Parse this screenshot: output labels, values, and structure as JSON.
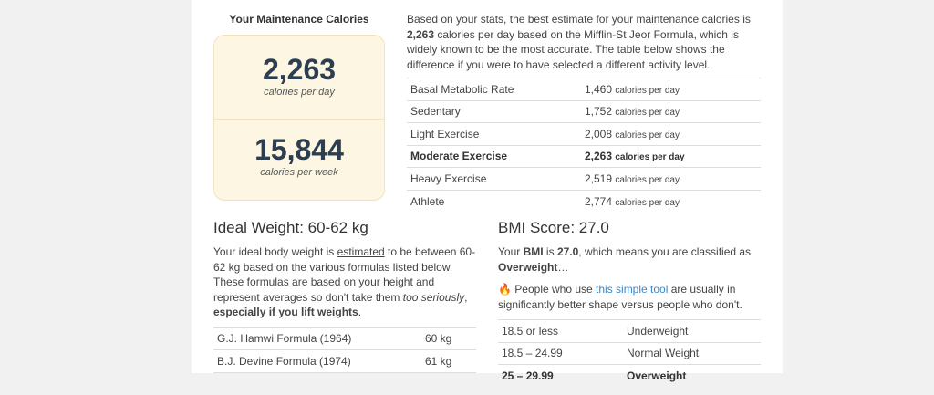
{
  "maintenance": {
    "title": "Your Maintenance Calories",
    "daily": "2,263",
    "daily_label": "calories per day",
    "weekly": "15,844",
    "weekly_label": "calories per week"
  },
  "intro": {
    "t1": "Based on your stats, the best estimate for your maintenance calories is ",
    "bold": "2,263",
    "t2": " calories per day based on the Mifflin-St Jeor Formula, which is widely known to be the most accurate. The table below shows the difference if you were to have selected a different activity level."
  },
  "activity": [
    {
      "level": "Basal Metabolic Rate",
      "value": "1,460",
      "unit": "calories per day"
    },
    {
      "level": "Sedentary",
      "value": "1,752",
      "unit": "calories per day"
    },
    {
      "level": "Light Exercise",
      "value": "2,008",
      "unit": "calories per day"
    },
    {
      "level": "Moderate Exercise",
      "value": "2,263",
      "unit": "calories per day"
    },
    {
      "level": "Heavy Exercise",
      "value": "2,519",
      "unit": "calories per day"
    },
    {
      "level": "Athlete",
      "value": "2,774",
      "unit": "calories per day"
    }
  ],
  "ideal": {
    "heading": "Ideal Weight: 60-62 kg",
    "t1": "Your ideal body weight is ",
    "u": "estimated",
    "t2": " to be between 60-62 kg based on the various formulas listed below. These formulas are based on your height and represent averages so don't take them ",
    "i": "too seriously",
    "t3": ", ",
    "b": "especially if you lift weights",
    "t4": ".",
    "formulas": [
      {
        "name": "G.J. Hamwi Formula (1964)",
        "value": "60 kg"
      },
      {
        "name": "B.J. Devine Formula (1974)",
        "value": "61 kg"
      }
    ]
  },
  "bmi": {
    "heading": "BMI Score: 27.0",
    "t1": "Your ",
    "b1": "BMI",
    "t2": " is ",
    "b2": "27.0",
    "t3": ", which means you are classified as ",
    "b3": "Overweight",
    "t4": "…",
    "fire": "🔥",
    "p1": " People who use ",
    "link": "this simple tool",
    "p2": " are usually in significantly better shape versus people who don't.",
    "ranges": [
      {
        "range": "18.5 or less",
        "label": "Underweight"
      },
      {
        "range": "18.5 – 24.99",
        "label": "Normal Weight"
      },
      {
        "range": "25 – 29.99",
        "label": "Overweight"
      }
    ]
  }
}
